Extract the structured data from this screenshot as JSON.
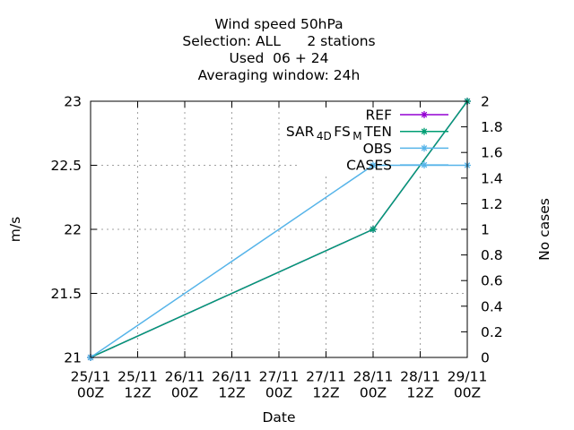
{
  "chart_data": {
    "type": "line",
    "title_lines": [
      "Wind speed 50hPa",
      "Selection: ALL      2 stations",
      "Used  06 + 24",
      "Averaging window: 24h"
    ],
    "xlabel": "Date",
    "ylabel": "m/s",
    "y2label": "No cases",
    "x_ticks": [
      {
        "date": "25/11",
        "time": "00Z"
      },
      {
        "date": "25/11",
        "time": "12Z"
      },
      {
        "date": "26/11",
        "time": "00Z"
      },
      {
        "date": "26/11",
        "time": "12Z"
      },
      {
        "date": "27/11",
        "time": "00Z"
      },
      {
        "date": "27/11",
        "time": "12Z"
      },
      {
        "date": "28/11",
        "time": "00Z"
      },
      {
        "date": "28/11",
        "time": "12Z"
      },
      {
        "date": "29/11",
        "time": "00Z"
      }
    ],
    "ylim": [
      21,
      23
    ],
    "y_ticks": [
      21,
      21.5,
      22,
      22.5,
      23
    ],
    "y2lim": [
      0,
      2
    ],
    "y2_ticks": [
      0,
      0.2,
      0.4,
      0.6,
      0.8,
      1,
      1.2,
      1.4,
      1.6,
      1.8,
      2
    ],
    "grid": true,
    "legend_placement": "top-right",
    "series": [
      {
        "name": "REF",
        "color": "#9400d3",
        "axis": "y",
        "x": [
          "25/11 00Z",
          "28/11 00Z",
          "29/11 00Z"
        ],
        "y": [
          21,
          22,
          23
        ]
      },
      {
        "name_parts": [
          {
            "text": "SAR"
          },
          {
            "text": "4D",
            "sub": true
          },
          {
            "text": "FS"
          },
          {
            "text": "M",
            "sub": true
          },
          {
            "text": "TEN"
          }
        ],
        "color": "#009e73",
        "axis": "y",
        "x": [
          "25/11 00Z",
          "28/11 00Z",
          "29/11 00Z"
        ],
        "y": [
          21,
          22,
          23
        ]
      },
      {
        "name": "OBS",
        "color": "#56b4e9",
        "axis": "y",
        "x": [
          "25/11 00Z",
          "28/11 00Z",
          "29/11 00Z"
        ],
        "y": [
          21,
          22.5,
          22.5
        ]
      },
      {
        "name": "CASES",
        "color": "#56b4e9",
        "axis": "y2",
        "x": [],
        "y": []
      }
    ]
  }
}
